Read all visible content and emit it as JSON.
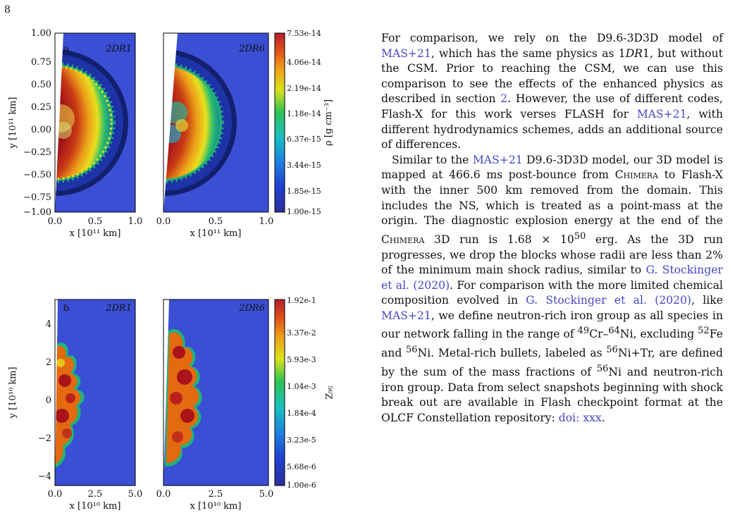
{
  "page_number": "8",
  "figure": {
    "top": {
      "panel_label": "a",
      "left_title": "2DR1",
      "right_title": "2DR6",
      "ylabel": "y [10¹¹ km]",
      "xlabel": "x [10¹¹ km]",
      "yticks": [
        "1.00",
        "0.75",
        "0.50",
        "0.25",
        "0.00",
        "−0.25",
        "−0.50",
        "−0.75",
        "−1.00"
      ],
      "xticks_left": [
        "0.0",
        "0.5",
        "1.0"
      ],
      "xticks_right": [
        "0.0",
        "0.5",
        "1.0"
      ],
      "colorbar_label": "ρ [g cm⁻³]",
      "colorbar_ticks": [
        "7.53e-14",
        "4.06e-14",
        "2.19e-14",
        "1.18e-14",
        "6.37e-15",
        "3.44e-15",
        "1.85e-15",
        "1.00e-15"
      ]
    },
    "bottom": {
      "panel_label": "b",
      "left_title": "2DR1",
      "right_title": "2DR6",
      "ylabel": "y [10¹⁰ km]",
      "xlabel": "x [10¹⁰ km]",
      "yticks": [
        "4",
        "2",
        "0",
        "−2",
        "−4"
      ],
      "xticks_left": [
        "0.0",
        "2.5",
        "5.0"
      ],
      "xticks_right": [
        "0.0",
        "2.5",
        "5.0"
      ],
      "colorbar_label": "⁵⁶Z",
      "colorbar_ticks": [
        "1.92e-1",
        "3.37e-2",
        "5.93e-3",
        "1.04e-3",
        "1.84e-4",
        "3.23e-5",
        "5.68e-6",
        "1.00e-6"
      ]
    },
    "colors": {
      "background_blue": "#3a4fd4",
      "shell_dark": "#0f1c6e",
      "shock_green": "#1fb37a",
      "shock_yellow": "#e7df1a",
      "core_red": "#a9141a",
      "core_orange": "#e36a10"
    }
  },
  "body": {
    "para1": {
      "t1": "For comparison, we rely on the D9.6-3D3D model of ",
      "c1": "MAS+21",
      "t2": ", which has the same physics as 1",
      "i1": "DR",
      "t3": "1, but without the CSM. Prior to reaching the CSM, we can use this comparison to see the effects of the enhanced physics as described in section ",
      "c2": "2",
      "t4": ". However, the use of different codes, Flash-X for this work verses FLASH for ",
      "c3": "MAS+21",
      "t5": ", with different hydrodynamics schemes, adds an additional source of differences."
    },
    "para2": {
      "t1": "Similar to the ",
      "c1": "MAS+21",
      "t2": " D9.6-3D3D model, our 3D model is mapped at 466.6 ms post-bounce from ",
      "sc1": "Chimera",
      "t3": " to Flash-X with the inner 500 km removed from the domain. This includes the NS, which is treated as a point-mass at the origin.  The diagnostic explosion energy at the end of the ",
      "sc2": "Chimera",
      "t4": " 3D run is 1.68 × 10",
      "sup1": "50",
      "t5": " erg.  As the 3D run progresses, we drop the blocks whose radii are less than 2% of the minimum main shock radius, similar to ",
      "c2": "G. Stockinger et al. (2020)",
      "t6": ".  For comparison with the more limited chemical composition evolved in ",
      "c3": "G. Stockinger et al. (2020)",
      "t7": ", like ",
      "c4": "MAS+21",
      "t8": ", we define neutron-rich iron group as all species in our network falling in the range of ",
      "sup2": "49",
      "t9": "Cr–",
      "sup3": "64",
      "t10": "Ni, excluding ",
      "sup4": "52",
      "t11": "Fe and ",
      "sup5": "56",
      "t12": "Ni. Metal-rich bullets, labeled as ",
      "sup6": "56",
      "t13": "Ni+Tr, are defined by the sum of the mass fractions of ",
      "sup7": "56",
      "t14": "Ni and neutron-rich iron group. Data from select snapshots beginning with shock break out are available in Flash checkpoint format at the OLCF Constellation repository:  ",
      "c5": "doi: xxx",
      "t15": "."
    }
  }
}
